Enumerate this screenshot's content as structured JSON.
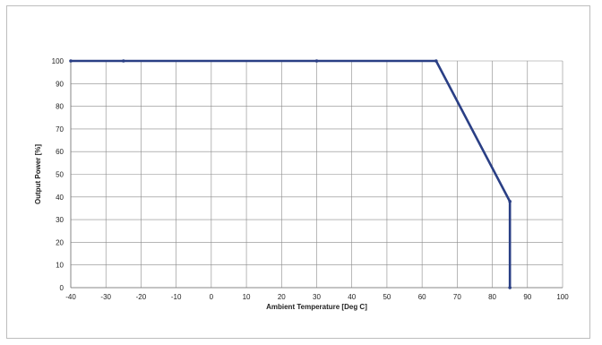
{
  "chart_data": {
    "type": "line",
    "title": "",
    "xlabel": "Ambient Temperature [Deg C]",
    "ylabel": "Output Power [%]",
    "xlim": [
      -40,
      100
    ],
    "ylim": [
      0,
      100
    ],
    "xticks": [
      -40,
      -30,
      -20,
      -10,
      0,
      10,
      20,
      30,
      40,
      50,
      60,
      70,
      80,
      90,
      100
    ],
    "yticks": [
      0,
      10,
      20,
      30,
      40,
      50,
      60,
      70,
      80,
      90,
      100
    ],
    "grid": true,
    "line_color": "#2a3f85",
    "series": [
      {
        "x": [
          -40,
          -25,
          30,
          64,
          85,
          85
        ],
        "y": [
          100,
          100,
          100,
          100,
          38,
          0
        ]
      }
    ]
  }
}
